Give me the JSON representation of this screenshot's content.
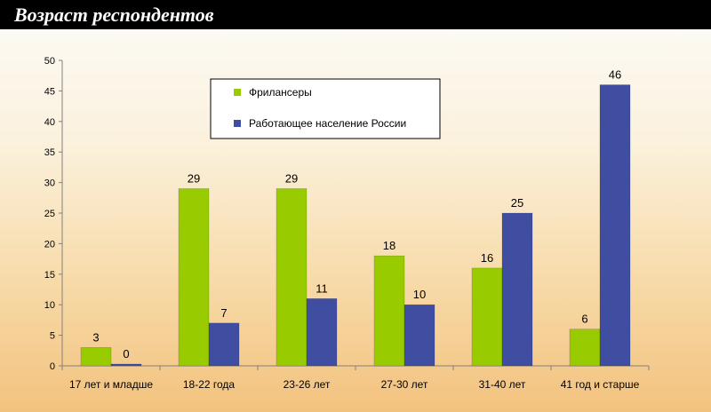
{
  "header": {
    "title": "Возраст респондентов"
  },
  "colors": {
    "series1": "#99cc00",
    "series2": "#3f4ea1",
    "border": "#8a8a8a"
  },
  "chart_data": {
    "type": "bar",
    "title": "",
    "xlabel": "",
    "ylabel": "",
    "ylim": [
      0,
      50
    ],
    "ytick_step": 5,
    "grid": false,
    "legend_position": "top-center",
    "categories": [
      "17 лет и младше",
      "18-22 года",
      "23-26 лет",
      "27-30 лет",
      "31-40 лет",
      "41 год и старше"
    ],
    "series": [
      {
        "name": "Фрилансеры",
        "values": [
          3,
          29,
          29,
          18,
          16,
          6
        ]
      },
      {
        "name": "Работающее население России",
        "values": [
          0,
          7,
          11,
          10,
          25,
          46
        ]
      }
    ]
  }
}
